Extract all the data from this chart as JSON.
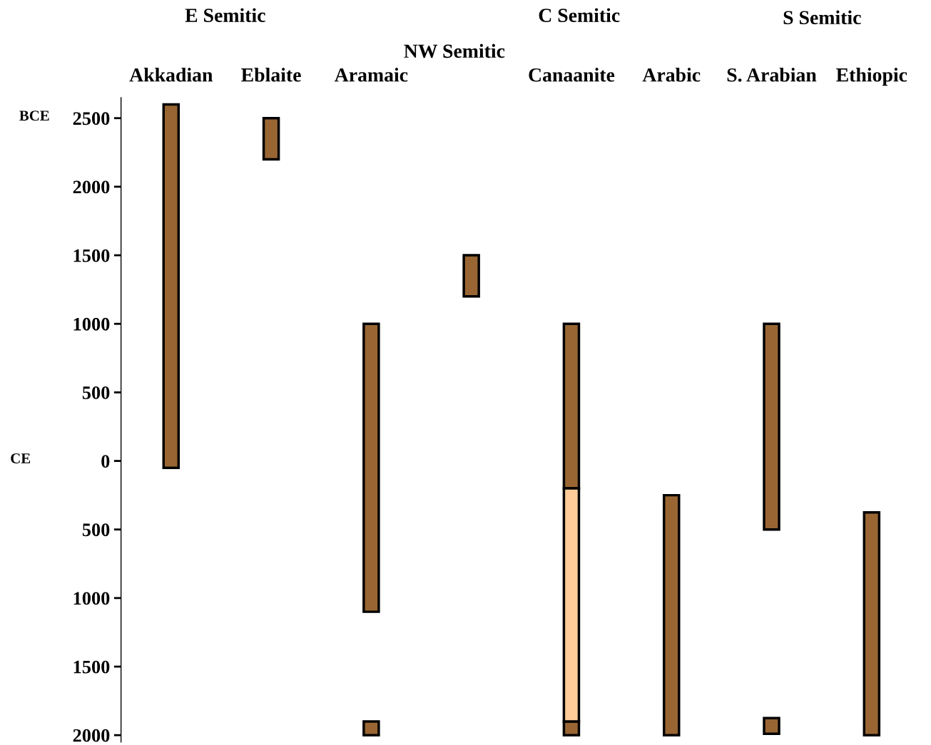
{
  "chart_data": {
    "type": "bar",
    "categories": [
      "Akkadian",
      "Eblaite",
      "Aramaic",
      null,
      "Canaanite",
      "Arabic",
      "S. Arabian",
      "Ethiopic"
    ],
    "series": [
      {
        "color": "#996633",
        "base": [
          -2600,
          -2500,
          -1000,
          -1500,
          -1000,
          250,
          -1000,
          375
        ],
        "values": [
          2650,
          300,
          2100,
          300,
          1200,
          1750,
          1500,
          1625
        ]
      },
      {
        "color": "#996633",
        "base": [
          null,
          null,
          1900,
          null,
          1900,
          null,
          1875,
          null
        ],
        "values": [
          null,
          null,
          100,
          null,
          100,
          null,
          115,
          null
        ]
      },
      {
        "color": "#ffcc99",
        "base": [
          null,
          null,
          null,
          null,
          200,
          null,
          null,
          null
        ],
        "values": [
          null,
          null,
          null,
          null,
          1700,
          null,
          null,
          null
        ]
      }
    ],
    "ylim": [
      2050,
      -2650
    ],
    "yticks": [
      {
        "value": -2500,
        "label": "2500"
      },
      {
        "value": -2000,
        "label": "2000"
      },
      {
        "value": -1500,
        "label": "1500"
      },
      {
        "value": -1000,
        "label": "1000"
      },
      {
        "value": -500,
        "label": "500"
      },
      0,
      500,
      1000,
      1500,
      2000
    ],
    "grid": false,
    "legend": false,
    "annotations": [
      "E Semitic",
      "NW Semitic",
      "C Semitic",
      "S Semitic",
      "BCE",
      "CE"
    ]
  }
}
